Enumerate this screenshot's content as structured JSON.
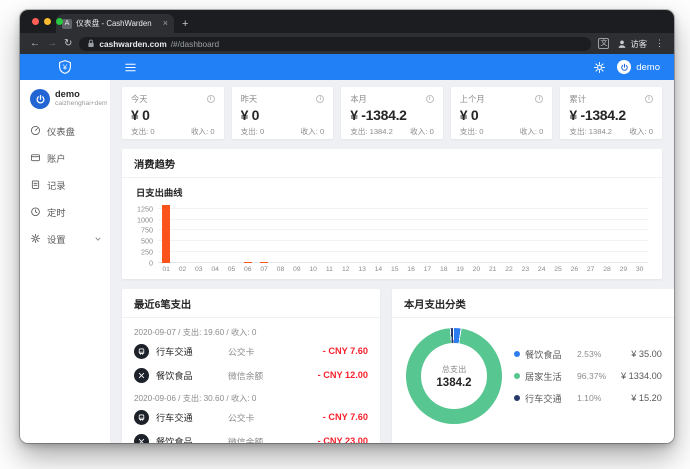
{
  "browser": {
    "tab": {
      "favicon": "A",
      "title": "仪表盘 - CashWarden",
      "close": "×"
    },
    "new_tab": "+",
    "back": "←",
    "forward": "→",
    "reload": "↻",
    "url": {
      "domain": "cashwarden.com",
      "path": "/#/dashboard"
    },
    "translate": "文",
    "guest_label": "访客",
    "menu": "⋮"
  },
  "app_header": {
    "user": "demo"
  },
  "sidebar": {
    "user": {
      "name": "demo",
      "email": "caizhenghai+dem"
    },
    "items": [
      {
        "key": "dashboard",
        "label": "仪表盘",
        "icon": "dashboard-icon",
        "caret": false
      },
      {
        "key": "accounts",
        "label": "账户",
        "icon": "wallet-icon",
        "caret": false
      },
      {
        "key": "records",
        "label": "记录",
        "icon": "records-icon",
        "caret": false
      },
      {
        "key": "schedule",
        "label": "定时",
        "icon": "timer-icon",
        "caret": false
      },
      {
        "key": "settings",
        "label": "设置",
        "icon": "settings-icon",
        "caret": true
      }
    ]
  },
  "stats": [
    {
      "label": "今天",
      "value": "¥ 0",
      "expense": "支出: 0",
      "income": "收入: 0"
    },
    {
      "label": "昨天",
      "value": "¥ 0",
      "expense": "支出: 0",
      "income": "收入: 0"
    },
    {
      "label": "本月",
      "value": "¥ -1384.2",
      "expense": "支出: 1384.2",
      "income": "收入: 0"
    },
    {
      "label": "上个月",
      "value": "¥ 0",
      "expense": "支出: 0",
      "income": "收入: 0"
    },
    {
      "label": "累计",
      "value": "¥ -1384.2",
      "expense": "支出: 1384.2",
      "income": "收入: 0"
    }
  ],
  "trend": {
    "title": "消费趋势",
    "subtitle": "日支出曲线"
  },
  "chart_data": [
    {
      "type": "bar",
      "title": "日支出曲线",
      "categories": [
        "01",
        "02",
        "03",
        "04",
        "05",
        "06",
        "07",
        "08",
        "09",
        "10",
        "11",
        "12",
        "13",
        "14",
        "15",
        "16",
        "17",
        "18",
        "19",
        "20",
        "21",
        "22",
        "23",
        "24",
        "25",
        "26",
        "27",
        "28",
        "29",
        "30"
      ],
      "values": [
        1334,
        0,
        0,
        0,
        0,
        30.6,
        19.6,
        0,
        0,
        0,
        0,
        0,
        0,
        0,
        0,
        0,
        0,
        0,
        0,
        0,
        0,
        0,
        0,
        0,
        0,
        0,
        0,
        0,
        0,
        0
      ],
      "xlabel": "",
      "ylabel": "",
      "yticks": [
        0,
        250,
        500,
        750,
        1000,
        1250
      ],
      "ylim": [
        0,
        1334
      ],
      "grid": true,
      "bar_color": "#fa541c"
    },
    {
      "type": "pie",
      "title": "本月支出分类",
      "center_label": "总支出",
      "center_value": "1384.2",
      "slices": [
        {
          "label": "餐饮食品",
          "value": 35.0,
          "percent": 2.53,
          "color": "#2d7cf2"
        },
        {
          "label": "居家生活",
          "value": 1334.0,
          "percent": 96.37,
          "color": "#57c690"
        },
        {
          "label": "行车交通",
          "value": 15.2,
          "percent": 1.1,
          "color": "#27386b"
        }
      ],
      "legend_position": "right"
    }
  ],
  "recent": {
    "title": "最近6笔支出",
    "groups": [
      {
        "header": "2020-09-07 / 支出: 19.60 / 收入: 0",
        "rows": [
          {
            "category": "行车交通",
            "icon": "car-icon",
            "account": "公交卡",
            "amount": "- CNY 7.60"
          },
          {
            "category": "餐饮食品",
            "icon": "dining-icon",
            "account": "微信余额",
            "amount": "- CNY 12.00"
          }
        ]
      },
      {
        "header": "2020-09-06 / 支出: 30.60 / 收入: 0",
        "rows": [
          {
            "category": "行车交通",
            "icon": "car-icon",
            "account": "公交卡",
            "amount": "- CNY 7.60"
          },
          {
            "category": "餐饮食品",
            "icon": "dining-icon",
            "account": "微信余额",
            "amount": "- CNY 23.00"
          }
        ]
      }
    ]
  },
  "category_card": {
    "title": "本月支出分类",
    "center_label": "总支出",
    "center_value": "1384.2",
    "legend": [
      {
        "name": "餐饮食品",
        "percent": "2.53%",
        "amount": "¥ 35.00",
        "color": "#2d7cf2"
      },
      {
        "name": "居家生活",
        "percent": "96.37%",
        "amount": "¥ 1334.00",
        "color": "#57c690"
      },
      {
        "name": "行车交通",
        "percent": "1.10%",
        "amount": "¥ 15.20",
        "color": "#27386b"
      }
    ]
  },
  "colors": {
    "accent": "#2280f7",
    "bar": "#fa541c",
    "negative": "#f5222d",
    "page_bg": "#eef0f4"
  }
}
